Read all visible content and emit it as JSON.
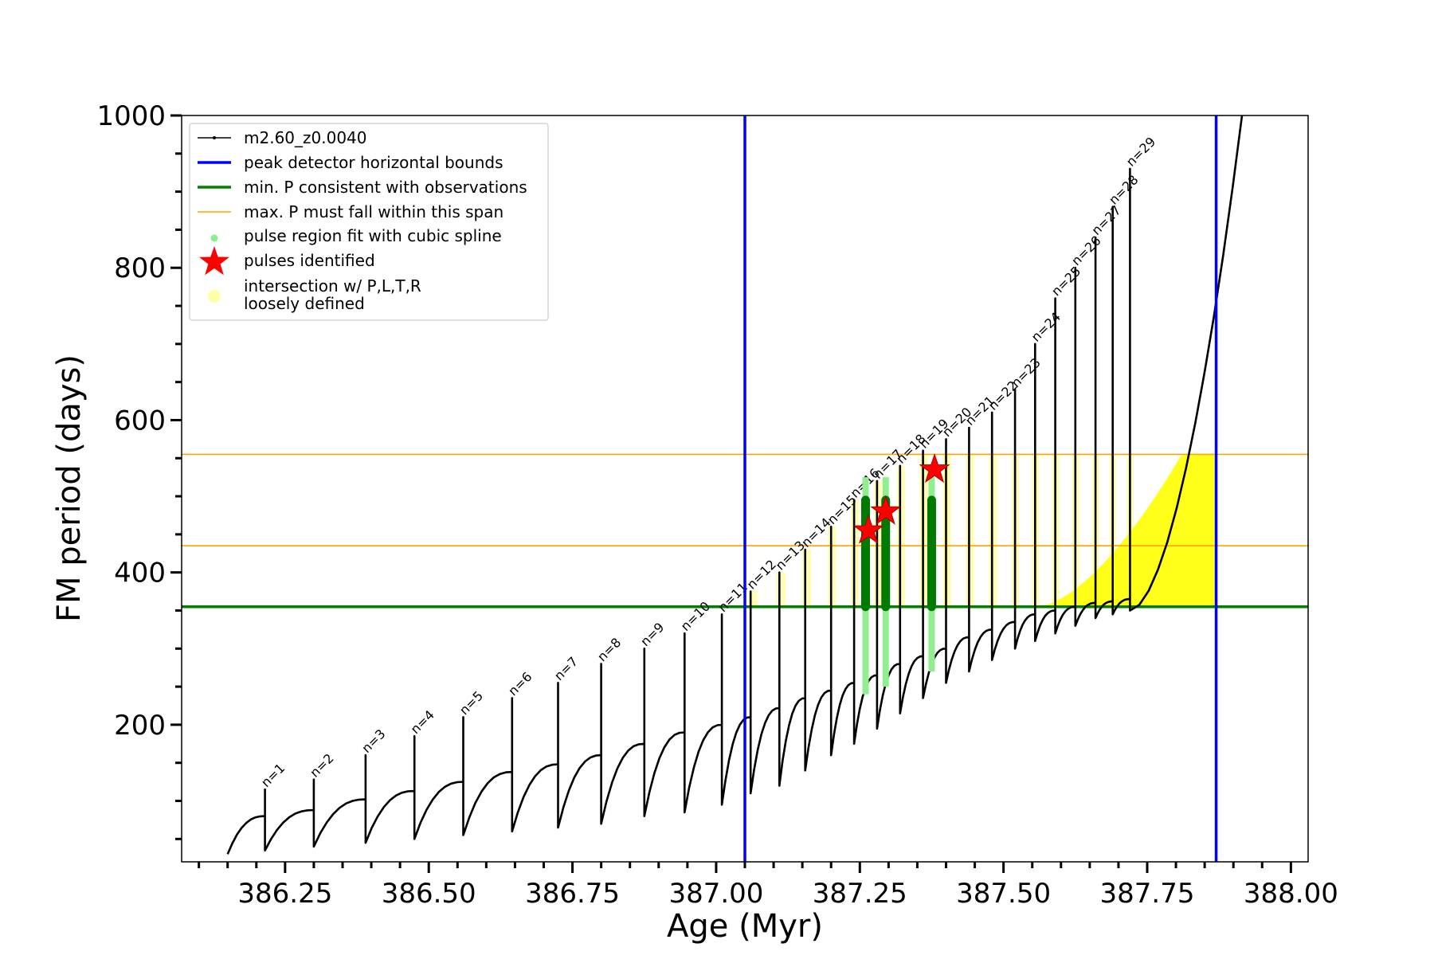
{
  "chart_data": {
    "type": "line",
    "xlabel": "Age (Myr)",
    "ylabel": "FM period (days)",
    "xlim": [
      386.07,
      388.03
    ],
    "ylim": [
      20,
      1000
    ],
    "x_ticks": [
      386.25,
      386.5,
      386.75,
      387.0,
      387.25,
      387.5,
      387.75,
      388.0
    ],
    "x_tick_labels": [
      "386.25",
      "386.50",
      "386.75",
      "387.00",
      "387.25",
      "387.50",
      "387.75",
      "388.00"
    ],
    "y_ticks": [
      200,
      400,
      600,
      800,
      1000
    ],
    "y_tick_labels": [
      "200",
      "400",
      "600",
      "800",
      "1000"
    ],
    "grid": false,
    "legend_position": "top-left",
    "legend": [
      {
        "key": "model",
        "label": "m2.60_z0.0040",
        "color": "#000000",
        "style": "line-dot"
      },
      {
        "key": "bounds",
        "label": "peak detector horizontal bounds",
        "color": "#0000ff",
        "style": "line"
      },
      {
        "key": "minp",
        "label": "min. P consistent with observations",
        "color": "#008000",
        "style": "line"
      },
      {
        "key": "maxp",
        "label": "max. P must fall within this span",
        "color": "#ffa500",
        "style": "thin-line"
      },
      {
        "key": "spline",
        "label": "pulse region fit with cubic spline",
        "color": "#90ee90",
        "style": "dot"
      },
      {
        "key": "pulses",
        "label": "pulses identified",
        "color": "#ff0000",
        "style": "star"
      },
      {
        "key": "intersect",
        "label": "intersection w/ P,L,T,R",
        "label2": "loosely defined",
        "color": "#ffff99",
        "style": "circle"
      }
    ],
    "vertical_bounds": [
      387.05,
      387.87
    ],
    "min_period": 355,
    "max_period_span": [
      435,
      555
    ],
    "pulses": {
      "n": [
        1,
        2,
        3,
        4,
        5,
        6,
        7,
        8,
        9,
        10,
        11,
        12,
        13,
        14,
        15,
        16,
        17,
        18,
        19,
        20,
        21,
        22,
        23,
        24,
        25,
        26,
        27,
        28,
        29
      ],
      "labels": [
        "n=1",
        "n=2",
        "n=3",
        "n=4",
        "n=5",
        "n=6",
        "n=7",
        "n=8",
        "n=9",
        "n=10",
        "n=11",
        "n=12",
        "n=13",
        "n=14",
        "n=15",
        "n=16",
        "n=17",
        "n=18",
        "n=19",
        "n=20",
        "n=21",
        "n=22",
        "n=23",
        "n=24",
        "n=25",
        "n=26",
        "n=27",
        "n=28",
        "n=29"
      ],
      "age": [
        386.215,
        386.3,
        386.39,
        386.475,
        386.56,
        386.645,
        386.725,
        386.8,
        386.875,
        386.945,
        387.01,
        387.06,
        387.11,
        387.155,
        387.2,
        387.24,
        387.28,
        387.32,
        387.36,
        387.4,
        387.44,
        387.48,
        387.52,
        387.555,
        387.59,
        387.625,
        387.66,
        387.69,
        387.72
      ],
      "peak_period": [
        115,
        128,
        160,
        185,
        210,
        235,
        255,
        280,
        300,
        320,
        345,
        375,
        400,
        430,
        460,
        495,
        520,
        540,
        560,
        575,
        590,
        610,
        640,
        700,
        760,
        800,
        840,
        880,
        930
      ],
      "trough_period": [
        35,
        40,
        45,
        50,
        55,
        60,
        65,
        70,
        80,
        85,
        95,
        110,
        120,
        140,
        160,
        175,
        195,
        215,
        235,
        255,
        270,
        285,
        300,
        310,
        320,
        330,
        340,
        345,
        350
      ],
      "plateau_period": [
        80,
        88,
        102,
        113,
        125,
        138,
        148,
        160,
        175,
        190,
        200,
        210,
        222,
        235,
        245,
        255,
        265,
        280,
        290,
        300,
        315,
        325,
        335,
        345,
        350,
        355,
        360,
        362,
        365
      ]
    },
    "identified_pulses": [
      {
        "age": 387.265,
        "period": 455
      },
      {
        "age": 387.295,
        "period": 480
      },
      {
        "age": 387.38,
        "period": 535
      }
    ],
    "spline_fits": [
      {
        "age": 387.26,
        "low": 240,
        "high": 525,
        "dark_low": 355,
        "dark_high": 495
      },
      {
        "age": 387.295,
        "low": 250,
        "high": 525,
        "dark_low": 355,
        "dark_high": 495
      },
      {
        "age": 387.375,
        "low": 270,
        "high": 525,
        "dark_low": 355,
        "dark_high": 495
      }
    ]
  }
}
